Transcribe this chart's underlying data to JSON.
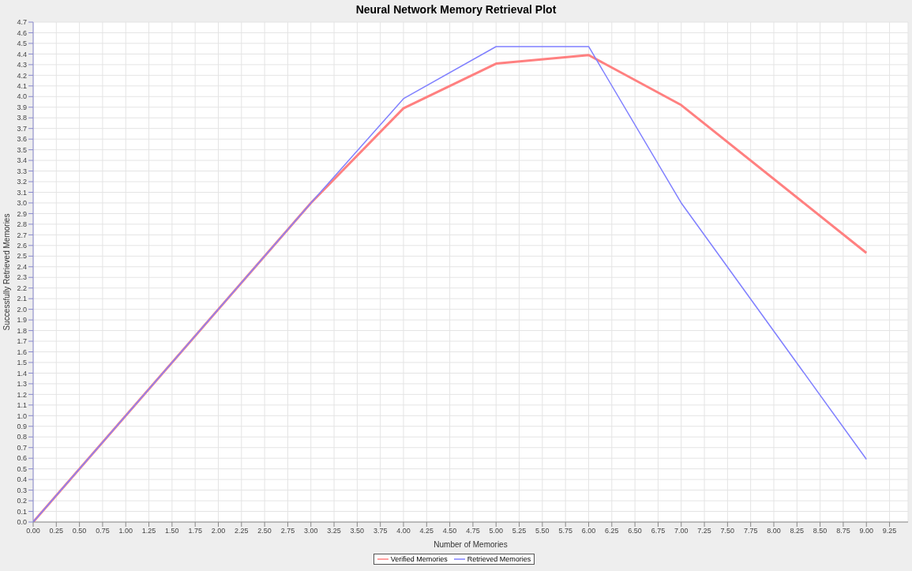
{
  "chart_data": {
    "type": "line",
    "title": "Neural Network Memory Retrieval Plot",
    "xlabel": "Number of Memories",
    "ylabel": "Successfully Retrieved Memories",
    "x": [
      0,
      3,
      4,
      5,
      6,
      7,
      9
    ],
    "series": [
      {
        "name": "Verified Memories",
        "color": "#ff8080",
        "values": [
          0,
          3,
          3.89,
          4.31,
          4.39,
          3.92,
          2.53
        ]
      },
      {
        "name": "Retrieved Memories",
        "color": "#8080ff",
        "values": [
          0,
          3,
          3.98,
          4.47,
          4.47,
          3.0,
          0.59
        ]
      }
    ],
    "xlim": [
      0,
      9.45
    ],
    "ylim": [
      0,
      4.7
    ],
    "xticks": [
      {
        "value": 0,
        "label": "0.00"
      },
      {
        "value": 0.25,
        "label": "0.25"
      },
      {
        "value": 0.5,
        "label": "0.50"
      },
      {
        "value": 0.75,
        "label": "0.75"
      },
      {
        "value": 1,
        "label": "1.00"
      },
      {
        "value": 1.25,
        "label": "1.25"
      },
      {
        "value": 1.5,
        "label": "1.50"
      },
      {
        "value": 1.75,
        "label": "1.75"
      },
      {
        "value": 2,
        "label": "2.00"
      },
      {
        "value": 2.25,
        "label": "2.25"
      },
      {
        "value": 2.5,
        "label": "2.50"
      },
      {
        "value": 2.75,
        "label": "2.75"
      },
      {
        "value": 3,
        "label": "3.00"
      },
      {
        "value": 3.25,
        "label": "3.25"
      },
      {
        "value": 3.5,
        "label": "3.50"
      },
      {
        "value": 3.75,
        "label": "3.75"
      },
      {
        "value": 4,
        "label": "4.00"
      },
      {
        "value": 4.25,
        "label": "4.25"
      },
      {
        "value": 4.5,
        "label": "4.50"
      },
      {
        "value": 4.75,
        "label": "4.75"
      },
      {
        "value": 5,
        "label": "5.00"
      },
      {
        "value": 5.25,
        "label": "5.25"
      },
      {
        "value": 5.5,
        "label": "5.50"
      },
      {
        "value": 5.75,
        "label": "5.75"
      },
      {
        "value": 6,
        "label": "6.00"
      },
      {
        "value": 6.25,
        "label": "6.25"
      },
      {
        "value": 6.5,
        "label": "6.50"
      },
      {
        "value": 6.75,
        "label": "6.75"
      },
      {
        "value": 7,
        "label": "7.00"
      },
      {
        "value": 7.25,
        "label": "7.25"
      },
      {
        "value": 7.5,
        "label": "7.50"
      },
      {
        "value": 7.75,
        "label": "7.75"
      },
      {
        "value": 8,
        "label": "8.00"
      },
      {
        "value": 8.25,
        "label": "8.25"
      },
      {
        "value": 8.5,
        "label": "8.50"
      },
      {
        "value": 8.75,
        "label": "8.75"
      },
      {
        "value": 9,
        "label": "9.00"
      },
      {
        "value": 9.25,
        "label": "9.25"
      }
    ],
    "yticks": [
      {
        "value": 0,
        "label": "0.0"
      },
      0.1,
      0.2,
      0.3,
      0.4,
      0.5,
      0.6,
      0.7,
      0.8,
      0.9,
      {
        "value": 1,
        "label": "1.0"
      },
      1.1,
      1.2,
      1.3,
      1.4,
      1.5,
      1.6,
      1.7,
      1.8,
      1.9,
      {
        "value": 2,
        "label": "2.0"
      },
      2.1,
      2.2,
      2.3,
      2.4,
      2.5,
      2.6,
      2.7,
      2.8,
      2.9,
      {
        "value": 3,
        "label": "3.0"
      },
      3.1,
      3.2,
      3.3,
      3.4,
      3.5,
      3.6,
      3.7,
      3.8,
      3.9,
      {
        "value": 4,
        "label": "4.0"
      },
      4.1,
      4.2,
      4.3,
      4.4,
      4.5,
      4.6,
      4.7
    ],
    "grid": true,
    "legend": "bottom",
    "marker": "none",
    "line_style": "solid"
  }
}
